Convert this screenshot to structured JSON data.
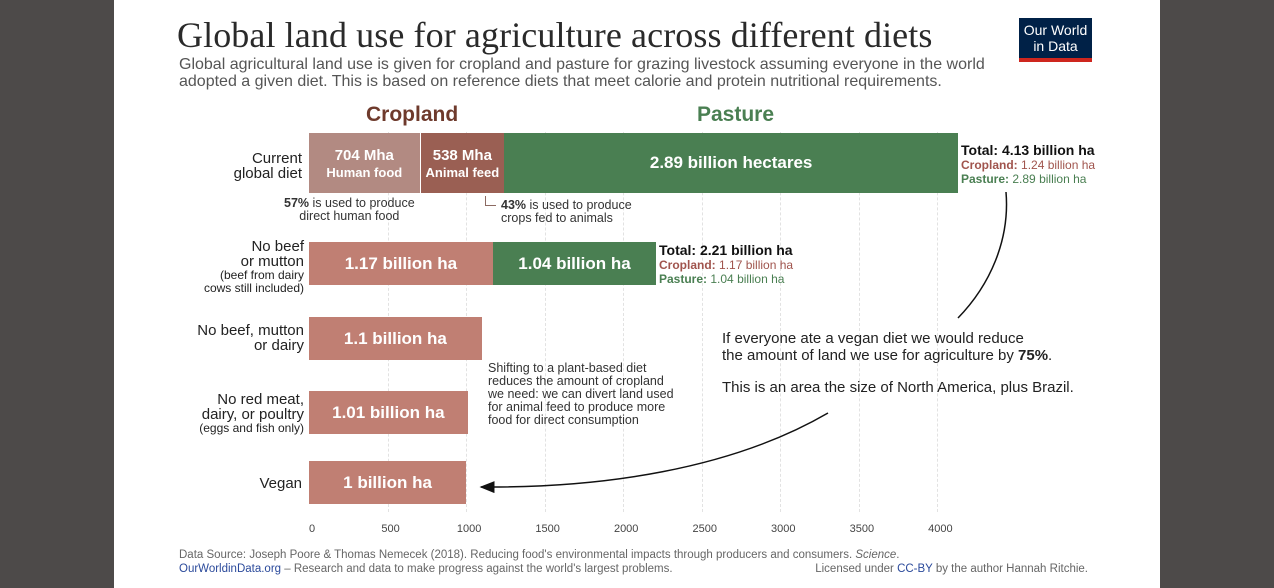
{
  "header": {
    "title": "Global land use for agriculture across different diets",
    "subtitle": "Global agricultural land use is given for cropland and pasture for grazing livestock assuming everyone in the world adopted a given diet. This is based on reference diets that meet calorie and protein nutritional requirements.",
    "logo_line1": "Our World",
    "logo_line2": "in Data"
  },
  "columns": {
    "cropland": "Cropland",
    "pasture": "Pasture"
  },
  "colors": {
    "cropland_human": "#b28a82",
    "cropland_feed": "#9a5f53",
    "cropland": "#c07f73",
    "pasture": "#4a7f52",
    "frame": "#4d4a49",
    "logo_bg": "#002147",
    "logo_accent": "#ce261e"
  },
  "chart_data": {
    "type": "bar",
    "orientation": "horizontal",
    "stacked": true,
    "unit": "million hectares",
    "xlim": [
      0,
      4130
    ],
    "categories": [
      "Current global diet",
      "No beef or mutton (beef from dairy cows still included)",
      "No beef, mutton or dairy",
      "No red meat, dairy, or poultry (eggs and fish only)",
      "Vegan"
    ],
    "series": [
      {
        "name": "Cropland",
        "values": [
          1242,
          1170,
          1100,
          1010,
          1000
        ]
      },
      {
        "name": "Pasture",
        "values": [
          2890,
          1040,
          0,
          0,
          0
        ]
      }
    ],
    "cropland_breakdown_current": {
      "human_food": 704,
      "animal_feed": 538
    },
    "xticks": [
      0,
      500,
      1000,
      1500,
      2000,
      2500,
      3000,
      3500,
      4000
    ],
    "grid": true
  },
  "rows": [
    {
      "label_main": "Current\nglobal diet",
      "segments": [
        {
          "value": "704 Mha",
          "sub": "Human food"
        },
        {
          "value": "538 Mha",
          "sub": "Animal feed"
        },
        {
          "value": "2.89 billion hectares",
          "sub": ""
        }
      ],
      "total": "Total: 4.13 billion ha",
      "crop_label": "Cropland:",
      "crop_value": "1.24 billion ha",
      "past_label": "Pasture:",
      "past_value": "2.89 billion ha"
    },
    {
      "label_main": "No beef\nor mutton",
      "label_small": "(beef from dairy\ncows still included)",
      "segments": [
        {
          "value": "1.17 billion ha"
        },
        {
          "value": "1.04 billion ha"
        }
      ],
      "total": "Total: 2.21 billion ha",
      "crop_label": "Cropland:",
      "crop_value": "1.17 billion ha",
      "past_label": "Pasture:",
      "past_value": "1.04 billion ha"
    },
    {
      "label_main": "No beef, mutton\nor dairy",
      "segments": [
        {
          "value": "1.1 billion ha"
        }
      ]
    },
    {
      "label_main": "No red meat,\ndairy, or poultry",
      "label_small": "(eggs and fish only)",
      "segments": [
        {
          "value": "1.01 billion ha"
        }
      ]
    },
    {
      "label_main": "Vegan",
      "segments": [
        {
          "value": "1 billion ha"
        }
      ]
    }
  ],
  "notes": {
    "human_pct": "57%",
    "human_text": " is used to produce\ndirect human food",
    "feed_pct": "43%",
    "feed_text": " is used to produce\ncrops fed to animals",
    "shift": "Shifting to a plant-based diet\nreduces the amount of cropland\nwe need: we can divert land used\nfor animal feed to produce more\nfood for direct consumption"
  },
  "callout": {
    "line1": "If everyone ate a vegan diet we would reduce",
    "line2_pre": "the amount of land we use for agriculture by ",
    "line2_bold": "75%",
    "line2_post": ".",
    "line3": "This is an area the size of North America, plus Brazil."
  },
  "footer": {
    "source": "Data Source: Joseph Poore & Thomas Nemecek (2018). Reducing food's environmental impacts through producers and consumers. ",
    "journal": "Science",
    "journal_post": ".",
    "site": "OurWorldinData.org",
    "site_tag": " – Research and data to make progress against the world's largest problems.",
    "license_pre": "Licensed under ",
    "license_link": "CC-BY",
    "license_post": " by the author Hannah Ritchie."
  }
}
